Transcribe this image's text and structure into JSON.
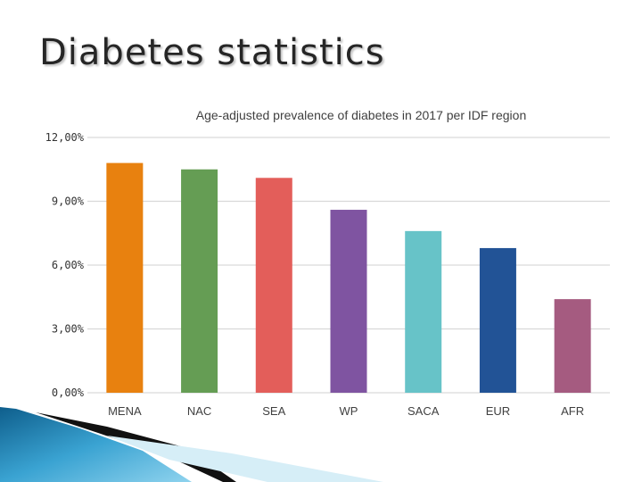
{
  "slide": {
    "title": "Diabetes statistics"
  },
  "chart_data": {
    "type": "bar",
    "title": "Age-adjusted prevalence of diabetes in 2017 per IDF region",
    "xlabel": "",
    "ylabel": "",
    "categories": [
      "MENA",
      "NAC",
      "SEA",
      "WP",
      "SACA",
      "EUR",
      "AFR"
    ],
    "values": [
      10.8,
      10.5,
      10.1,
      8.6,
      7.6,
      6.8,
      4.4
    ],
    "colors": [
      "#E8810F",
      "#659D54",
      "#E35E5A",
      "#7F54A1",
      "#67C3C8",
      "#225396",
      "#A55B80"
    ],
    "ylim": [
      0,
      12
    ],
    "yticks": [
      0,
      3,
      6,
      9,
      12
    ],
    "ytick_labels": [
      "0,00%",
      "3,00%",
      "6,00%",
      "9,00%",
      "12,00%"
    ],
    "grid": true,
    "legend": "none"
  }
}
